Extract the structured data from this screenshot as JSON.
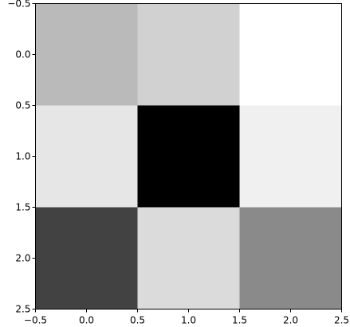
{
  "chart_data": {
    "type": "heatmap",
    "colormap": "gray",
    "title": "",
    "xlabel": "",
    "ylabel": "",
    "xlim": [
      -0.5,
      2.5
    ],
    "ylim": [
      2.5,
      -0.5
    ],
    "x_tick_labels": [
      "−0.5",
      "0.0",
      "0.5",
      "1.0",
      "1.5",
      "2.0",
      "2.5"
    ],
    "y_tick_labels": [
      "−0.5",
      "0.0",
      "0.5",
      "1.0",
      "1.5",
      "2.0",
      "2.5"
    ],
    "x_ticks": [
      -0.5,
      0.0,
      0.5,
      1.0,
      1.5,
      2.0,
      2.5
    ],
    "y_ticks": [
      -0.5,
      0.0,
      0.5,
      1.0,
      1.5,
      2.0,
      2.5
    ],
    "values": [
      [
        0.73,
        0.82,
        1.0
      ],
      [
        0.9,
        0.0,
        0.94
      ],
      [
        0.26,
        0.86,
        0.54
      ]
    ],
    "grid": false,
    "legend": "none"
  }
}
